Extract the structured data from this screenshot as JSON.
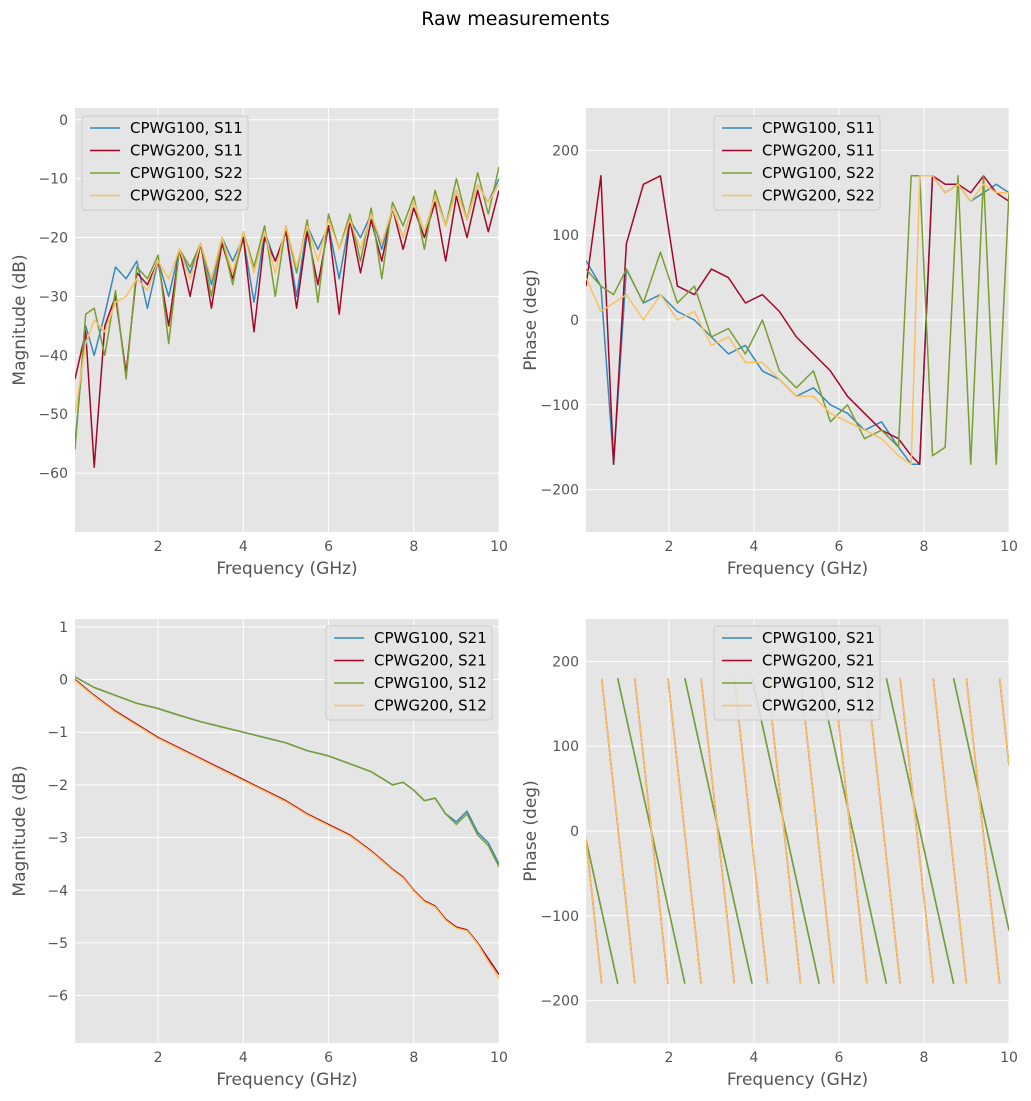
{
  "figure_title": "Raw measurements",
  "colors": {
    "series1": "#348ABD",
    "series2": "#A60628",
    "series3": "#7A9E2F",
    "series4": "#FBC15E",
    "panel_bg": "#E5E5E5",
    "grid": "#FFFFFF"
  },
  "chart_data": [
    {
      "type": "line",
      "xlabel": "Frequency (GHz)",
      "ylabel": "Magnitude (dB)",
      "xlim": [
        0.05,
        10
      ],
      "ylim": [
        -70,
        2
      ],
      "xticks": [
        2,
        4,
        6,
        8,
        10
      ],
      "yticks": [
        0,
        -10,
        -20,
        -30,
        -40,
        -50,
        -60
      ],
      "ytick_labels": [
        "0",
        "−10",
        "−20",
        "−30",
        "−40",
        "−50",
        "−60"
      ],
      "legend": "upper-left",
      "x": [
        0.05,
        0.3,
        0.5,
        0.75,
        1.0,
        1.25,
        1.5,
        1.75,
        2.0,
        2.25,
        2.5,
        2.75,
        3.0,
        3.25,
        3.5,
        3.75,
        4.0,
        4.25,
        4.5,
        4.75,
        5.0,
        5.25,
        5.5,
        5.75,
        6.0,
        6.25,
        6.5,
        6.75,
        7.0,
        7.25,
        7.5,
        7.75,
        8.0,
        8.25,
        8.5,
        8.75,
        9.0,
        9.25,
        9.5,
        9.75,
        10.0
      ],
      "series": [
        {
          "name": "CPWG100, S11",
          "values": [
            -55,
            -35,
            -40,
            -33,
            -25,
            -27,
            -24,
            -32,
            -24,
            -30,
            -22,
            -26,
            -21,
            -28,
            -20,
            -24,
            -20,
            -31,
            -19,
            -24,
            -19,
            -30,
            -18,
            -22,
            -18,
            -27,
            -17,
            -20,
            -16,
            -22,
            -15,
            -20,
            -14,
            -19,
            -13,
            -18,
            -12,
            -17,
            -11,
            -14,
            -10
          ]
        },
        {
          "name": "CPWG200, S11",
          "values": [
            -44,
            -36,
            -59,
            -35,
            -30,
            -43,
            -26,
            -28,
            -24,
            -35,
            -22,
            -30,
            -21,
            -32,
            -21,
            -27,
            -20,
            -36,
            -20,
            -24,
            -19,
            -32,
            -19,
            -28,
            -18,
            -33,
            -17,
            -26,
            -17,
            -24,
            -15,
            -22,
            -15,
            -20,
            -14,
            -24,
            -13,
            -20,
            -12,
            -19,
            -12
          ]
        },
        {
          "name": "CPWG100, S22",
          "values": [
            -56,
            -33,
            -32,
            -40,
            -29,
            -44,
            -25,
            -27,
            -23,
            -38,
            -22,
            -25,
            -21,
            -30,
            -20,
            -28,
            -19,
            -25,
            -18,
            -30,
            -18,
            -26,
            -17,
            -31,
            -16,
            -22,
            -16,
            -24,
            -15,
            -27,
            -14,
            -18,
            -13,
            -22,
            -12,
            -18,
            -10,
            -17,
            -9,
            -16,
            -8
          ]
        },
        {
          "name": "CPWG200, S22",
          "values": [
            -50,
            -38,
            -34,
            -36,
            -31,
            -30,
            -27,
            -29,
            -24,
            -27,
            -22,
            -27,
            -21,
            -27,
            -20,
            -26,
            -19,
            -26,
            -19,
            -26,
            -18,
            -25,
            -18,
            -24,
            -17,
            -22,
            -17,
            -22,
            -16,
            -21,
            -15,
            -20,
            -14,
            -19,
            -13,
            -18,
            -12,
            -17,
            -11,
            -14,
            -11
          ]
        }
      ]
    },
    {
      "type": "line",
      "xlabel": "Frequency (GHz)",
      "ylabel": "Phase (deg)",
      "xlim": [
        0.05,
        10
      ],
      "ylim": [
        -250,
        250
      ],
      "xticks": [
        2,
        4,
        6,
        8,
        10
      ],
      "yticks": [
        200,
        100,
        0,
        -100,
        -200
      ],
      "ytick_labels": [
        "200",
        "100",
        "0",
        "−100",
        "−200"
      ],
      "legend": "upper-center",
      "x": [
        0.05,
        0.4,
        0.7,
        1.0,
        1.4,
        1.8,
        2.2,
        2.6,
        3.0,
        3.4,
        3.8,
        4.2,
        4.6,
        5.0,
        5.4,
        5.8,
        6.2,
        6.6,
        7.0,
        7.4,
        7.7,
        7.9,
        8.2,
        8.5,
        8.8,
        9.1,
        9.4,
        9.7,
        10.0
      ],
      "series": [
        {
          "name": "CPWG100, S11",
          "values": [
            70,
            40,
            -170,
            60,
            20,
            30,
            10,
            0,
            -20,
            -40,
            -30,
            -60,
            -70,
            -90,
            -80,
            -100,
            -110,
            -130,
            -120,
            -150,
            -170,
            -170,
            170,
            150,
            160,
            140,
            150,
            160,
            150
          ]
        },
        {
          "name": "CPWG200, S11",
          "values": [
            40,
            170,
            -170,
            90,
            160,
            170,
            40,
            30,
            60,
            50,
            20,
            30,
            10,
            -20,
            -40,
            -60,
            -90,
            -110,
            -130,
            -140,
            -160,
            -170,
            170,
            160,
            160,
            150,
            170,
            150,
            140
          ]
        },
        {
          "name": "CPWG100, S22",
          "values": [
            60,
            40,
            30,
            60,
            20,
            80,
            20,
            40,
            -20,
            -10,
            -40,
            0,
            -60,
            -80,
            -60,
            -120,
            -100,
            -140,
            -130,
            -150,
            170,
            170,
            -160,
            -150,
            170,
            -170,
            170,
            -170,
            150
          ]
        },
        {
          "name": "CPWG200, S22",
          "values": [
            50,
            10,
            20,
            30,
            0,
            30,
            0,
            10,
            -30,
            -20,
            -50,
            -50,
            -70,
            -90,
            -90,
            -110,
            -120,
            -130,
            -140,
            -160,
            -170,
            170,
            170,
            150,
            160,
            140,
            160,
            150,
            150
          ]
        }
      ]
    },
    {
      "type": "line",
      "xlabel": "Frequency (GHz)",
      "ylabel": "Magnitude (dB)",
      "xlim": [
        0.05,
        10
      ],
      "ylim": [
        -6.9,
        1.15
      ],
      "xticks": [
        2,
        4,
        6,
        8,
        10
      ],
      "yticks": [
        1,
        0,
        -1,
        -2,
        -3,
        -4,
        -5,
        -6
      ],
      "ytick_labels": [
        "1",
        "0",
        "−1",
        "−2",
        "−3",
        "−4",
        "−5",
        "−6"
      ],
      "legend": "upper-right",
      "x": [
        0.05,
        0.5,
        1.0,
        1.5,
        2.0,
        2.5,
        3.0,
        3.5,
        4.0,
        4.5,
        5.0,
        5.5,
        6.0,
        6.5,
        7.0,
        7.5,
        7.75,
        8.0,
        8.25,
        8.5,
        8.75,
        9.0,
        9.25,
        9.5,
        9.75,
        10.0
      ],
      "series": [
        {
          "name": "CPWG100, S21",
          "values": [
            0.05,
            -0.15,
            -0.3,
            -0.45,
            -0.55,
            -0.68,
            -0.8,
            -0.9,
            -1.0,
            -1.1,
            -1.2,
            -1.35,
            -1.45,
            -1.6,
            -1.75,
            -2.0,
            -1.95,
            -2.1,
            -2.3,
            -2.25,
            -2.55,
            -2.7,
            -2.5,
            -2.9,
            -3.1,
            -3.5
          ]
        },
        {
          "name": "CPWG200, S21",
          "values": [
            0.0,
            -0.3,
            -0.6,
            -0.85,
            -1.1,
            -1.3,
            -1.5,
            -1.7,
            -1.9,
            -2.1,
            -2.3,
            -2.55,
            -2.75,
            -2.95,
            -3.25,
            -3.6,
            -3.75,
            -4.0,
            -4.2,
            -4.3,
            -4.55,
            -4.7,
            -4.75,
            -5.0,
            -5.3,
            -5.6
          ]
        },
        {
          "name": "CPWG100, S12",
          "values": [
            0.05,
            -0.15,
            -0.3,
            -0.45,
            -0.55,
            -0.68,
            -0.8,
            -0.9,
            -1.0,
            -1.1,
            -1.2,
            -1.35,
            -1.45,
            -1.6,
            -1.75,
            -2.0,
            -1.95,
            -2.1,
            -2.3,
            -2.25,
            -2.55,
            -2.75,
            -2.55,
            -2.95,
            -3.15,
            -3.55
          ]
        },
        {
          "name": "CPWG200, S12",
          "values": [
            -0.02,
            -0.32,
            -0.62,
            -0.87,
            -1.12,
            -1.32,
            -1.52,
            -1.72,
            -1.92,
            -2.12,
            -2.32,
            -2.57,
            -2.77,
            -2.97,
            -3.27,
            -3.62,
            -3.77,
            -4.02,
            -4.22,
            -4.32,
            -4.57,
            -4.72,
            -4.77,
            -5.02,
            -5.35,
            -5.68
          ]
        }
      ]
    },
    {
      "type": "line",
      "xlabel": "Frequency (GHz)",
      "ylabel": "Phase (deg)",
      "xlim": [
        0.05,
        10
      ],
      "ylim": [
        -250,
        250
      ],
      "xticks": [
        2,
        4,
        6,
        8,
        10
      ],
      "yticks": [
        200,
        100,
        0,
        -100,
        -200
      ],
      "ytick_labels": [
        "200",
        "100",
        "0",
        "−100",
        "−200"
      ],
      "legend": "upper-center",
      "wrap_period_ghz": {
        "CPWG100": 1.58,
        "CPWG200": 0.78
      },
      "start_phase_deg": {
        "CPWG100": -10,
        "CPWG200": -10
      },
      "series": [
        {
          "name": "CPWG100, S21",
          "group": "CPWG100"
        },
        {
          "name": "CPWG200, S21",
          "group": "CPWG200"
        },
        {
          "name": "CPWG100, S12",
          "group": "CPWG100"
        },
        {
          "name": "CPWG200, S12",
          "group": "CPWG200"
        }
      ]
    }
  ]
}
